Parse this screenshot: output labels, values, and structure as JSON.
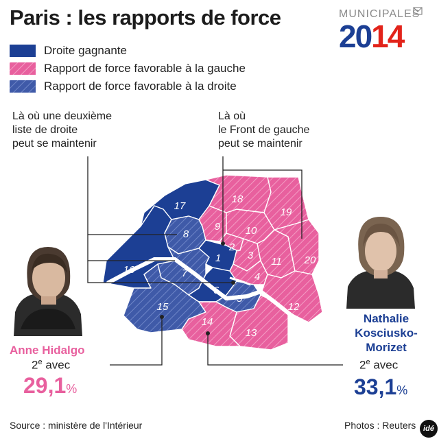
{
  "title": "Paris : les rapports de force",
  "brand": {
    "kicker": "MUNICIPALES",
    "year_part1": "20",
    "year_part2": "14"
  },
  "legend": [
    {
      "label": "Droite gagnante",
      "pattern": "solid-blue"
    },
    {
      "label": "Rapport de force favorable à la gauche",
      "pattern": "hatched-pink"
    },
    {
      "label": "Rapport de force favorable à la droite",
      "pattern": "hatched-blue"
    }
  ],
  "notes": {
    "left": "Là où une deuxième\nliste de droite\npeut se maintenir",
    "right": "Là où\nle Front de gauche\npeut se maintenir"
  },
  "colors": {
    "blue": "#1c3f94",
    "blue_hatch": "#4a63b0",
    "pink": "#e8609e",
    "pink_hatch": "#ef8fbb",
    "hidalgo": "#e8609e",
    "nkm": "#1c3f94"
  },
  "arrondissements": [
    {
      "id": "1",
      "status": "solid-blue"
    },
    {
      "id": "2",
      "status": "hatched-pink"
    },
    {
      "id": "3",
      "status": "hatched-pink"
    },
    {
      "id": "4",
      "status": "hatched-pink"
    },
    {
      "id": "5",
      "status": "hatched-blue"
    },
    {
      "id": "6",
      "status": "solid-blue"
    },
    {
      "id": "7",
      "status": "hatched-blue"
    },
    {
      "id": "8",
      "status": "hatched-blue"
    },
    {
      "id": "9",
      "status": "hatched-pink"
    },
    {
      "id": "10",
      "status": "hatched-pink"
    },
    {
      "id": "11",
      "status": "hatched-pink"
    },
    {
      "id": "12",
      "status": "hatched-pink"
    },
    {
      "id": "13",
      "status": "hatched-pink"
    },
    {
      "id": "14",
      "status": "hatched-pink"
    },
    {
      "id": "15",
      "status": "hatched-blue"
    },
    {
      "id": "16",
      "status": "solid-blue"
    },
    {
      "id": "17",
      "status": "solid-blue"
    },
    {
      "id": "18",
      "status": "hatched-pink"
    },
    {
      "id": "19",
      "status": "hatched-pink"
    },
    {
      "id": "20",
      "status": "hatched-pink"
    }
  ],
  "candidates": {
    "left": {
      "name": "Anne Hidalgo",
      "rank_num": "2",
      "rank_sup": "e",
      "rank_text": " avec",
      "pct_value": "29,1",
      "pct_sign": "%"
    },
    "right": {
      "name_line1": "Nathalie",
      "name_line2": "Kosciusko-",
      "name_line3": "Morizet",
      "rank_num": "2",
      "rank_sup": "e",
      "rank_text": " avec",
      "pct_value": "33,1",
      "pct_sign": "%"
    }
  },
  "footer": {
    "source": "Source : ministère de l'Intérieur",
    "photos": "Photos : Reuters",
    "logo": "idé"
  }
}
